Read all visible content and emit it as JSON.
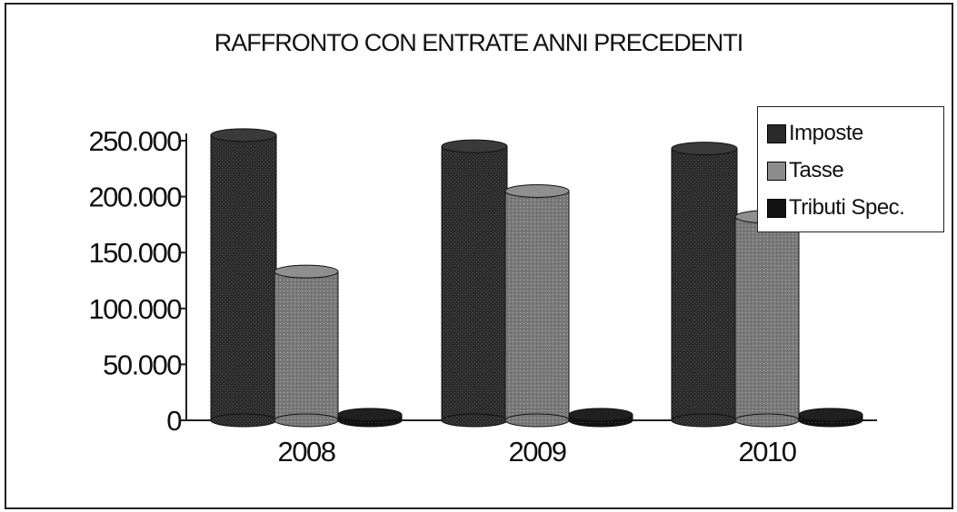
{
  "chart_data": {
    "type": "bar",
    "title": "RAFFRONTO CON ENTRATE ANNI PRECEDENTI",
    "categories": [
      "2008",
      "2009",
      "2010"
    ],
    "series": [
      {
        "name": "Imposte",
        "values": [
          255000,
          245000,
          243000
        ],
        "color": "#2a2a2a"
      },
      {
        "name": "Tasse",
        "values": [
          133000,
          205000,
          182000
        ],
        "color": "#7d7d7d"
      },
      {
        "name": "Tributi Spec.",
        "values": [
          5000,
          5000,
          5000
        ],
        "color": "#101010"
      }
    ],
    "ylim": [
      0,
      250000
    ],
    "yticks": [
      "0",
      "50.000",
      "100.000",
      "150.000",
      "200.000",
      "250.000"
    ],
    "ytick_values": [
      0,
      50000,
      100000,
      150000,
      200000,
      250000
    ],
    "grid": false,
    "legend_position": "top-right"
  }
}
